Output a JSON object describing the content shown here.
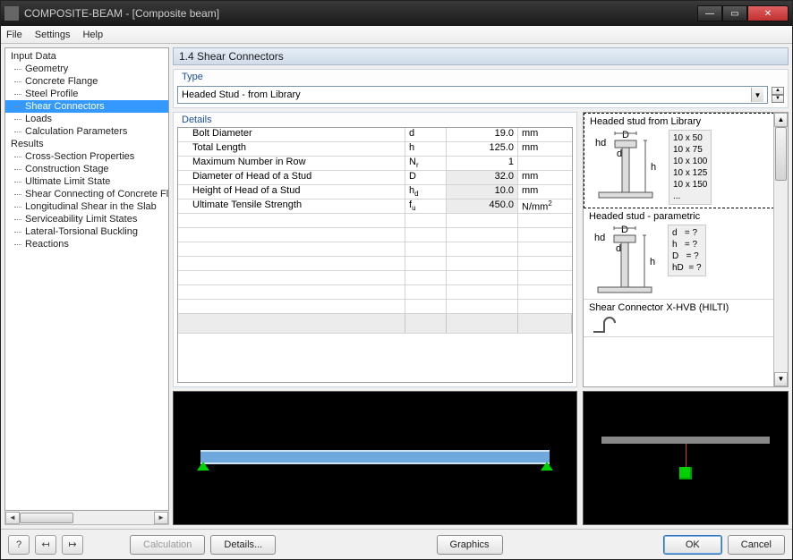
{
  "window": {
    "title": "COMPOSITE-BEAM - [Composite beam]"
  },
  "menu": {
    "file": "File",
    "settings": "Settings",
    "help": "Help"
  },
  "tree": {
    "input_group": "Input Data",
    "input_items": [
      "Geometry",
      "Concrete Flange",
      "Steel Profile",
      "Shear Connectors",
      "Loads",
      "Calculation Parameters"
    ],
    "selected_index": 3,
    "results_group": "Results",
    "results_items": [
      "Cross-Section Properties",
      "Construction Stage",
      "Ultimate Limit State",
      "Shear Connecting of Concrete Flange",
      "Longitudinal Shear in the Slab",
      "Serviceability Limit States",
      "Lateral-Torsional Buckling",
      "Reactions"
    ]
  },
  "main": {
    "heading": "1.4 Shear Connectors",
    "type_label": "Type",
    "type_value": "Headed Stud - from Library",
    "details_label": "Details",
    "rows": [
      {
        "label": "Bolt Diameter",
        "sym": "d",
        "val": "19.0",
        "unit": "mm",
        "grey": false
      },
      {
        "label": "Total Length",
        "sym": "h",
        "val": "125.0",
        "unit": "mm",
        "grey": false
      },
      {
        "label": "Maximum Number in Row",
        "sym": "Nr",
        "val": "1",
        "unit": "",
        "grey": false
      },
      {
        "label": "Diameter of Head of a Stud",
        "sym": "D",
        "val": "32.0",
        "unit": "mm",
        "grey": true
      },
      {
        "label": "Height of Head of a Stud",
        "sym": "hd",
        "val": "10.0",
        "unit": "mm",
        "grey": true
      },
      {
        "label": "Ultimate Tensile Strength",
        "sym": "fu",
        "val": "450.0",
        "unit": "N/mm²",
        "grey": true
      }
    ]
  },
  "library": {
    "item1": {
      "title": "Headed stud from Library",
      "sizes": "10 x 50\n10 x 75\n10 x 100\n10 x 125\n10 x 150\n..."
    },
    "item2": {
      "title": "Headed stud - parametric",
      "params": "d   = ?\nh   = ?\nD   = ?\nhD  = ?"
    },
    "item3": {
      "title": "Shear Connector X-HVB (HILTI)"
    }
  },
  "preview": {
    "beam_color": "#6fa8dc",
    "beam_edge_color": "#cfe2f3",
    "support_color": "#00d000",
    "slab_color": "#888888",
    "connector_line_color": "#d04020",
    "background_color": "#000000"
  },
  "footer": {
    "calculation": "Calculation",
    "details": "Details...",
    "graphics": "Graphics",
    "ok": "OK",
    "cancel": "Cancel"
  }
}
